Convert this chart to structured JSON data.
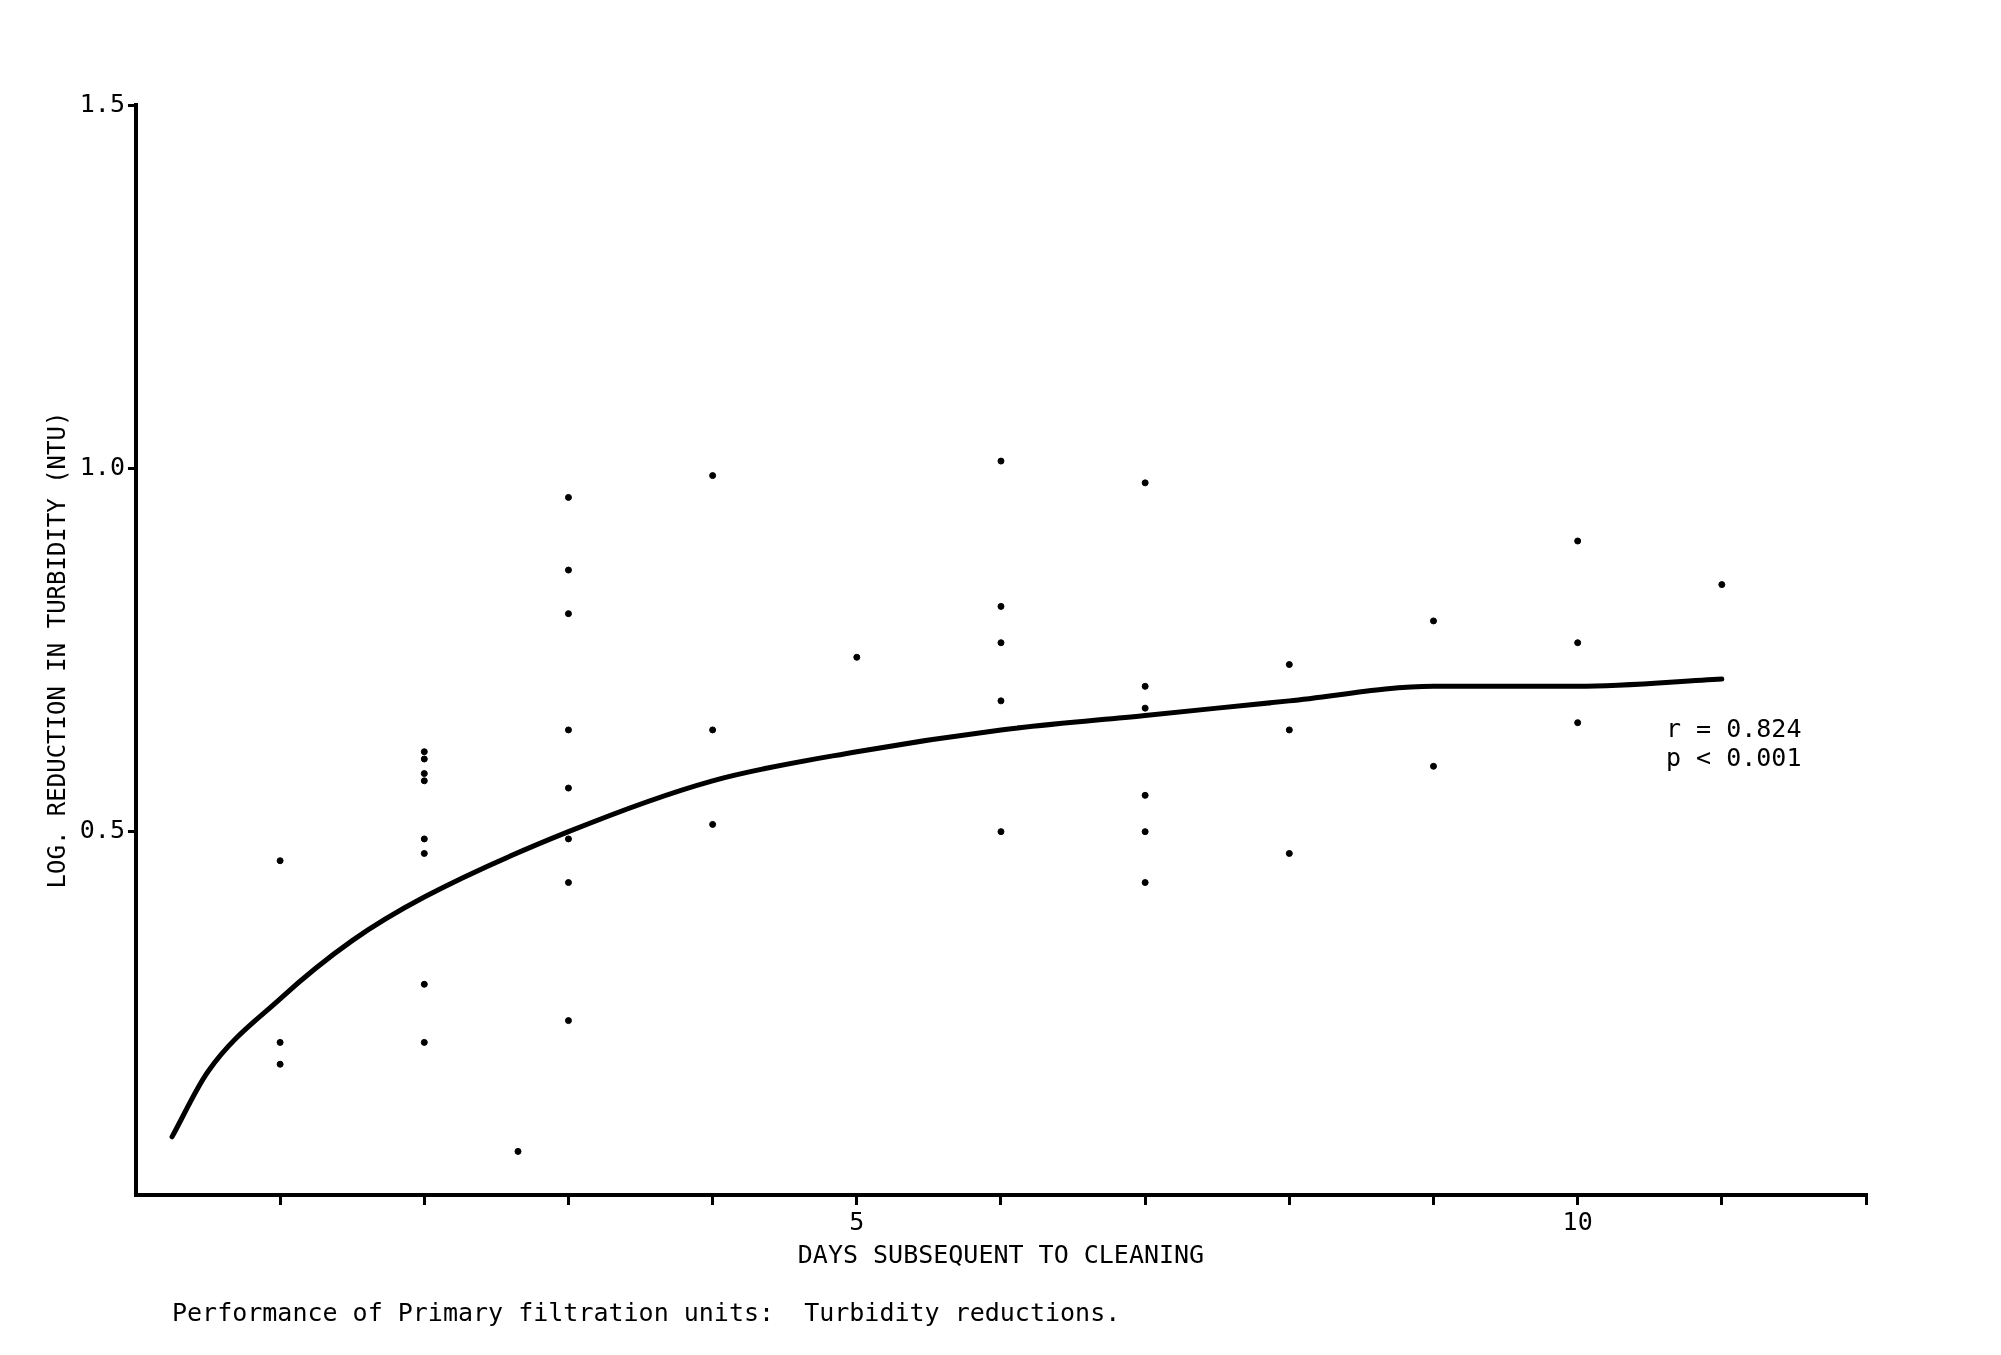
{
  "chart_data": {
    "type": "scatter",
    "xlabel": "DAYS SUBSEQUENT TO CLEANING",
    "ylabel": "LOG. REDUCTION IN TURBIDITY (NTU)",
    "xlim": [
      0,
      12
    ],
    "xticks": [
      {
        "value": 1,
        "label": null
      },
      {
        "value": 2,
        "label": null
      },
      {
        "value": 3,
        "label": null
      },
      {
        "value": 4,
        "label": null
      },
      5,
      {
        "value": 6,
        "label": null
      },
      {
        "value": 7,
        "label": null
      },
      {
        "value": 8,
        "label": null
      },
      {
        "value": 9,
        "label": null
      },
      10,
      {
        "value": 11,
        "label": null
      },
      {
        "value": 12,
        "label": null
      }
    ],
    "ylim": [
      0,
      1.5
    ],
    "yticks": [
      {
        "value": 0.5,
        "label": "0.5"
      },
      {
        "value": 1,
        "label": "1.0"
      },
      {
        "value": 1.5,
        "label": "1.5"
      }
    ],
    "grid": false,
    "legend": false,
    "series": [
      {
        "marker": "circle",
        "color": "#000000",
        "x": [
          1,
          1,
          1,
          2,
          2,
          2,
          2,
          2,
          2,
          2,
          2,
          2.65,
          3,
          3,
          3,
          3,
          3,
          3,
          3,
          3,
          4,
          4,
          4,
          5,
          6,
          6,
          6,
          6,
          6,
          7,
          7,
          7,
          7,
          7,
          7,
          8,
          8,
          8,
          9,
          9,
          10,
          10,
          10,
          11
        ],
        "values": [
          0.46,
          0.21,
          0.18,
          0.61,
          0.6,
          0.58,
          0.57,
          0.49,
          0.47,
          0.29,
          0.21,
          0.06,
          0.96,
          0.86,
          0.8,
          0.64,
          0.56,
          0.49,
          0.43,
          0.24,
          0.99,
          0.64,
          0.51,
          0.74,
          1.01,
          0.81,
          0.76,
          0.68,
          0.5,
          0.98,
          0.7,
          0.67,
          0.55,
          0.5,
          0.43,
          0.73,
          0.64,
          0.47,
          0.79,
          0.59,
          0.9,
          0.76,
          0.65,
          0.84
        ]
      },
      {
        "type": "line",
        "marker": "none",
        "line_style": "solid",
        "color": "#000000",
        "x": [
          0.25,
          0.5,
          1,
          1.5,
          2,
          3,
          4,
          5,
          6,
          7,
          8,
          9,
          10,
          11
        ],
        "values": [
          0.08,
          0.17,
          0.27,
          0.35,
          0.41,
          0.5,
          0.57,
          0.61,
          0.64,
          0.66,
          0.68,
          0.7,
          0.7,
          0.71
        ]
      }
    ],
    "annotations": [
      "r = 0.824\np < 0.001",
      "Performance of Primary filtration units:  Turbidity reductions."
    ]
  }
}
